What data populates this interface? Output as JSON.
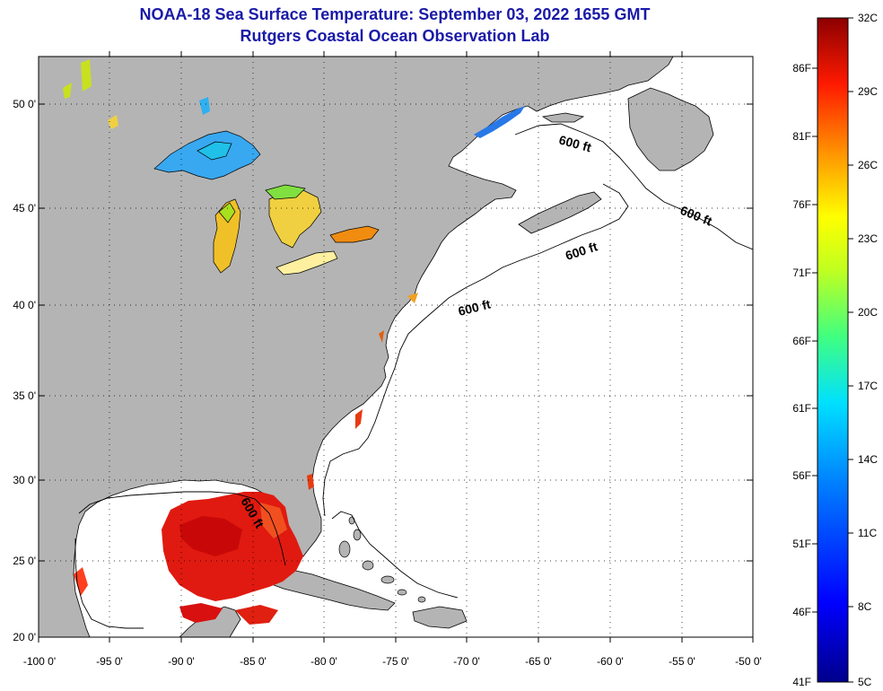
{
  "header": {
    "title": "NOAA-18 Sea Surface Temperature:  September 03, 2022 1655 GMT",
    "subtitle": "Rutgers Coastal Ocean Observation Lab"
  },
  "map": {
    "lon_ticks": [
      "-100 0'",
      "-95 0'",
      "-90 0'",
      "-85 0'",
      "-80 0'",
      "-75 0'",
      "-70 0'",
      "-65 0'",
      "-60 0'",
      "-55 0'",
      "-50 0'"
    ],
    "lat_ticks": [
      "50 0'",
      "45 0'",
      "40 0'",
      "35 0'",
      "30 0'",
      "25 0'",
      "20 0'"
    ],
    "contour_labels": [
      "600 ft",
      "600 ft",
      "600 ft",
      "600 ft",
      "600 ft"
    ],
    "land_color": "#b4b4b4",
    "ocean_color": "#ffffff",
    "grid": true
  },
  "colorbar": {
    "f_labels": [
      "86F",
      "81F",
      "76F",
      "71F",
      "66F",
      "61F",
      "56F",
      "51F",
      "46F",
      "41F"
    ],
    "c_labels": [
      "32C",
      "29C",
      "26C",
      "23C",
      "20C",
      "17C",
      "14C",
      "11C",
      "8C",
      "5C"
    ]
  }
}
